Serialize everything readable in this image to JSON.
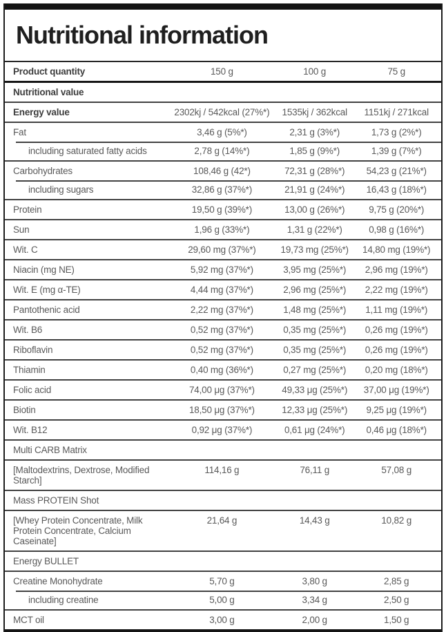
{
  "header": {
    "title": "Nutritional information"
  },
  "table": {
    "columns": {
      "label": "Product quantity",
      "quantities": [
        "150 g",
        "100 g",
        "75 g"
      ]
    },
    "rows": [
      {
        "label": "Product quantity",
        "values": [
          "150 g",
          "100 g",
          "75 g"
        ],
        "bold": true
      },
      {
        "label": "Nutritional value",
        "values": [],
        "bold": true,
        "thickTop": true
      },
      {
        "label": "Energy value",
        "values": [
          "2302kj / 542kcal (27%*)",
          "1535kj / 362kcal",
          "1151kj / 271kcal"
        ],
        "bold": true
      },
      {
        "label": "Fat",
        "values": [
          "3,46 g (5%*)",
          "2,31 g (3%*)",
          "1,73 g (2%*)"
        ]
      },
      {
        "label": "including saturated fatty acids",
        "values": [
          "2,78 g (14%*)",
          "1,85 g (9%*)",
          "1,39 g (7%*)"
        ],
        "indent": true
      },
      {
        "label": "Carbohydrates",
        "values": [
          "108,46 g (42*)",
          "72,31 g (28%*)",
          "54,23 g (21%*)"
        ]
      },
      {
        "label": "including sugars",
        "values": [
          "32,86 g (37%*)",
          "21,91 g (24%*)",
          "16,43 g (18%*)"
        ],
        "indent": true
      },
      {
        "label": "Protein",
        "values": [
          "19,50 g (39%*)",
          "13,00 g (26%*)",
          "9,75 g (20%*)"
        ]
      },
      {
        "label": "Sun",
        "values": [
          "1,96 g (33%*)",
          "1,31 g (22%*)",
          "0,98 g (16%*)"
        ]
      },
      {
        "label": "Wit. C",
        "values": [
          "29,60 mg (37%*)",
          "19,73 mg (25%*)",
          "14,80 mg (19%*)"
        ]
      },
      {
        "label": "Niacin (mg NE)",
        "values": [
          "5,92 mg (37%*)",
          "3,95 mg (25%*)",
          "2,96 mg (19%*)"
        ]
      },
      {
        "label": "Wit. E (mg α-TE)",
        "values": [
          "4,44 mg (37%*)",
          "2,96 mg (25%*)",
          "2,22 mg (19%*)"
        ]
      },
      {
        "label": "Pantothenic acid",
        "values": [
          "2,22 mg (37%*)",
          "1,48 mg (25%*)",
          "1,11 mg (19%*)"
        ]
      },
      {
        "label": "Wit. B6",
        "values": [
          "0,52 mg (37%*)",
          "0,35 mg (25%*)",
          "0,26 mg (19%*)"
        ]
      },
      {
        "label": "Riboflavin",
        "values": [
          "0,52 mg (37%*)",
          "0,35 mg (25%*)",
          "0,26 mg (19%*)"
        ]
      },
      {
        "label": "Thiamin",
        "values": [
          "0,40 mg (36%*)",
          "0,27 mg (25%*)",
          "0,20 mg (18%*)"
        ]
      },
      {
        "label": "Folic acid",
        "values": [
          "74,00 μg (37%*)",
          "49,33 μg (25%*)",
          "37,00 μg (19%*)"
        ]
      },
      {
        "label": "Biotin",
        "values": [
          "18,50 μg (37%*)",
          "12,33 μg (25%*)",
          "9,25 μg (19%*)"
        ]
      },
      {
        "label": "Wit. B12",
        "values": [
          "0,92 μg (37%*)",
          "0,61 μg (24%*)",
          "0,46 μg (18%*)"
        ]
      },
      {
        "label": "Multi CARB Matrix",
        "values": [],
        "section": true
      },
      {
        "label": "[Maltodextrins, Dextrose, Modified Starch]",
        "values": [
          "114,16 g",
          "76,11 g",
          "57,08 g"
        ]
      },
      {
        "label": "Mass PROTEIN Shot",
        "values": [],
        "section": true
      },
      {
        "label": "[Whey Protein Concentrate, Milk Protein Concentrate, Calcium Caseinate]",
        "values": [
          "21,64 g",
          "14,43 g",
          "10,82 g"
        ]
      },
      {
        "label": "Energy BULLET",
        "values": [],
        "section": true
      },
      {
        "label": "Creatine Monohydrate",
        "values": [
          "5,70 g",
          "3,80 g",
          "2,85 g"
        ]
      },
      {
        "label": "including creatine",
        "values": [
          "5,00 g",
          "3,34 g",
          "2,50 g"
        ],
        "indent": true
      },
      {
        "label": "MCT oil",
        "values": [
          "3,00 g",
          "2,00 g",
          "1,50 g"
        ]
      }
    ]
  },
  "colors": {
    "bar": "#141414",
    "row_border": "#414141",
    "thick_border": "#161616",
    "text": "#595959",
    "bold_text": "#3d3d3d",
    "title": "#1f1f1f"
  }
}
